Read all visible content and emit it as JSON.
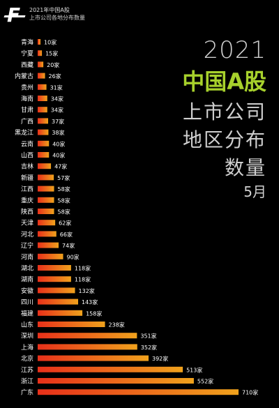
{
  "header": {
    "logo": "F",
    "line1": "2021年中国A股",
    "line2": "上市公司各地分布数量"
  },
  "headline": {
    "year": "2021",
    "title": "中国A股",
    "line_a": "上市公司",
    "line_b": "地区分布",
    "line_c": "数量",
    "month": "5月"
  },
  "chart_data": {
    "type": "bar",
    "orientation": "horizontal",
    "value_suffix": "家",
    "categories": [
      "青海",
      "宁夏",
      "西藏",
      "内蒙古",
      "贵州",
      "海南",
      "甘肃",
      "广西",
      "黑龙江",
      "云南",
      "山西",
      "吉林",
      "新疆",
      "江西",
      "重庆",
      "陕西",
      "天津",
      "河北",
      "辽宁",
      "河南",
      "湖北",
      "湖南",
      "安徽",
      "四川",
      "福建",
      "山东",
      "深圳",
      "上海",
      "北京",
      "江苏",
      "浙江",
      "广东"
    ],
    "values": [
      10,
      15,
      20,
      26,
      31,
      34,
      34,
      37,
      38,
      40,
      40,
      47,
      57,
      58,
      58,
      58,
      62,
      66,
      74,
      90,
      118,
      118,
      132,
      143,
      158,
      238,
      351,
      352,
      392,
      513,
      552,
      710
    ],
    "colors": {
      "bar_start": "#e8301a",
      "bar_end": "#f0a21c",
      "text": "#ffffff"
    }
  }
}
